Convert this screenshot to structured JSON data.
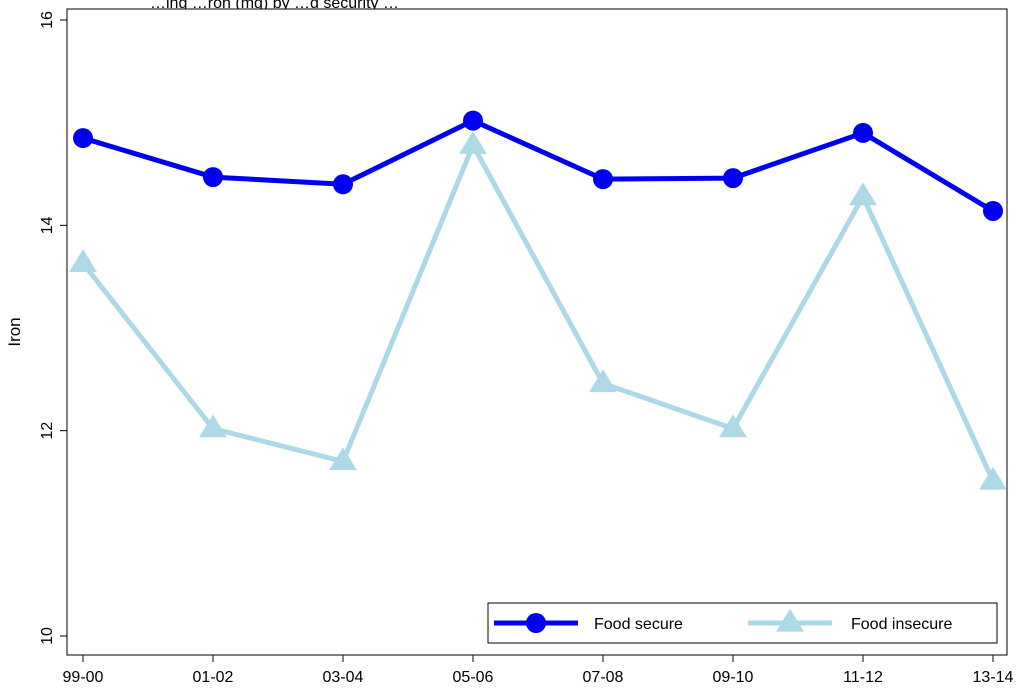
{
  "chart_data": {
    "type": "line",
    "title": "…ing …ron (mg) by …d security …",
    "xlabel": "",
    "ylabel": "Iron",
    "categories": [
      "99-00",
      "01-02",
      "03-04",
      "05-06",
      "07-08",
      "09-10",
      "11-12",
      "13-14"
    ],
    "ylim": [
      10,
      16
    ],
    "yticks": [
      10,
      12,
      14,
      16
    ],
    "grid": false,
    "legend_position": "bottom-right",
    "series": [
      {
        "name": "Food secure",
        "marker": "circle",
        "color": "#0000ee",
        "values": [
          14.85,
          14.47,
          14.4,
          15.02,
          14.45,
          14.46,
          14.9,
          14.14
        ]
      },
      {
        "name": "Food insecure",
        "marker": "triangle",
        "color": "#add8e6",
        "values": [
          13.63,
          12.02,
          11.7,
          14.78,
          12.46,
          12.02,
          14.28,
          11.51
        ]
      }
    ]
  }
}
